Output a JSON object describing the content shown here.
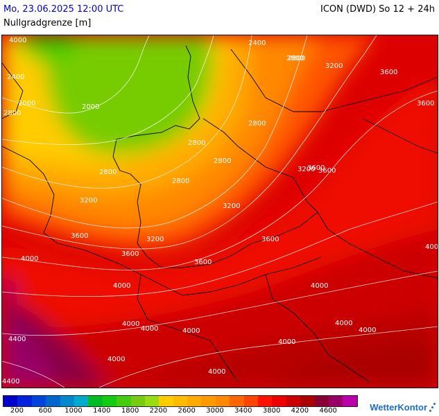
{
  "header": {
    "valid_time": "Mo, 23.06.2025 12:00 UTC",
    "parameter": "Nullgradgrenze [m]",
    "model_run": "ICON (DWD) So 12 + 24h"
  },
  "legend": {
    "colors": [
      "#0000cc",
      "#0022dd",
      "#0044dd",
      "#0066cc",
      "#0088cc",
      "#00aacc",
      "#00bb22",
      "#11cc11",
      "#44cc11",
      "#77cc11",
      "#99dd11",
      "#ffcc00",
      "#ffbb00",
      "#ffaa00",
      "#ff9900",
      "#ff8800",
      "#ff6600",
      "#ff4400",
      "#ff1100",
      "#ee0000",
      "#cc0000",
      "#aa0000",
      "#880033",
      "#990066",
      "#bb00aa"
    ],
    "labels": [
      "200",
      "600",
      "1000",
      "1400",
      "1800",
      "2200",
      "2600",
      "3000",
      "3400",
      "3800",
      "4200",
      "4600"
    ]
  },
  "contour_labels": [
    {
      "text": "2800"
    },
    {
      "text": "3200"
    },
    {
      "text": "3600"
    },
    {
      "text": "2000"
    },
    {
      "text": "2400"
    },
    {
      "text": "2800"
    },
    {
      "text": "2000"
    },
    {
      "text": "2400"
    },
    {
      "text": "2800"
    },
    {
      "text": "3200"
    },
    {
      "text": "3600"
    },
    {
      "text": "3600"
    },
    {
      "text": "2800"
    },
    {
      "text": "2800"
    },
    {
      "text": "2800"
    },
    {
      "text": "2800"
    },
    {
      "text": "3200"
    },
    {
      "text": "3600"
    },
    {
      "text": "3200"
    },
    {
      "text": "3200"
    },
    {
      "text": "3600"
    },
    {
      "text": "4000"
    },
    {
      "text": "3600"
    },
    {
      "text": "3600"
    },
    {
      "text": "3600"
    },
    {
      "text": "4000"
    },
    {
      "text": "4000"
    },
    {
      "text": "4000"
    },
    {
      "text": "4000"
    },
    {
      "text": "4000"
    },
    {
      "text": "4000"
    },
    {
      "text": "4000"
    },
    {
      "text": "4400"
    },
    {
      "text": "4000"
    },
    {
      "text": "4000"
    },
    {
      "text": "4000"
    },
    {
      "text": "4000"
    },
    {
      "text": "4400"
    },
    {
      "text": "4000"
    },
    {
      "text": "2800"
    }
  ],
  "brand": {
    "name": "WetterKontor"
  }
}
